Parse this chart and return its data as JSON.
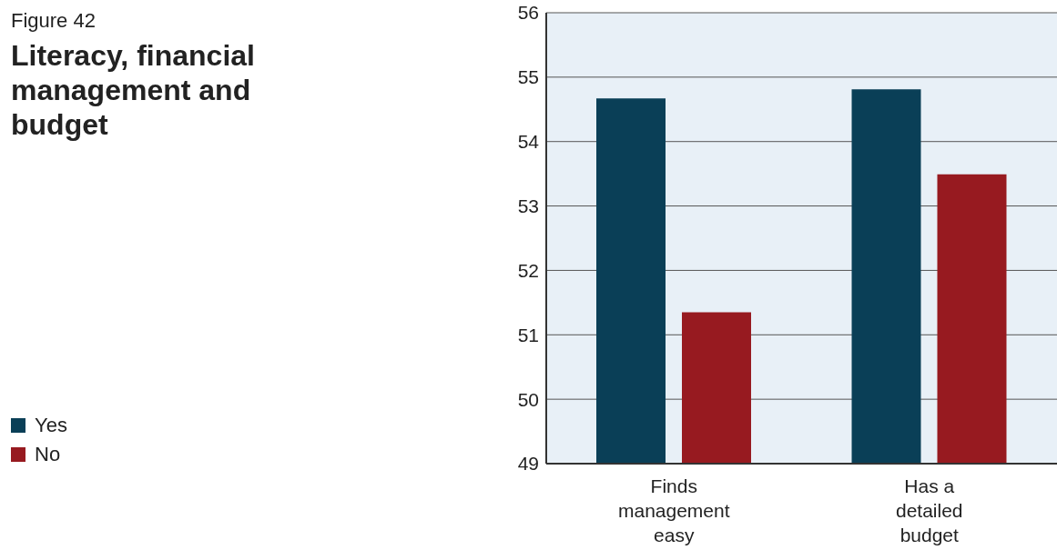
{
  "chart_data": {
    "type": "bar",
    "title": "Literacy, financial management and budget",
    "annotations": [
      "Figure 42"
    ],
    "categories": [
      "Finds management easy",
      "Has a detailed budget"
    ],
    "series": [
      {
        "name": "Yes",
        "color": "#0a3f57",
        "values": [
          54.67,
          54.81
        ]
      },
      {
        "name": "No",
        "color": "#971a20",
        "values": [
          51.35,
          53.49
        ]
      }
    ],
    "ylim": [
      49,
      56
    ],
    "yticks": [
      49,
      50,
      51,
      52,
      53,
      54,
      55,
      56
    ],
    "grid": "y",
    "legend": "bottom left"
  }
}
